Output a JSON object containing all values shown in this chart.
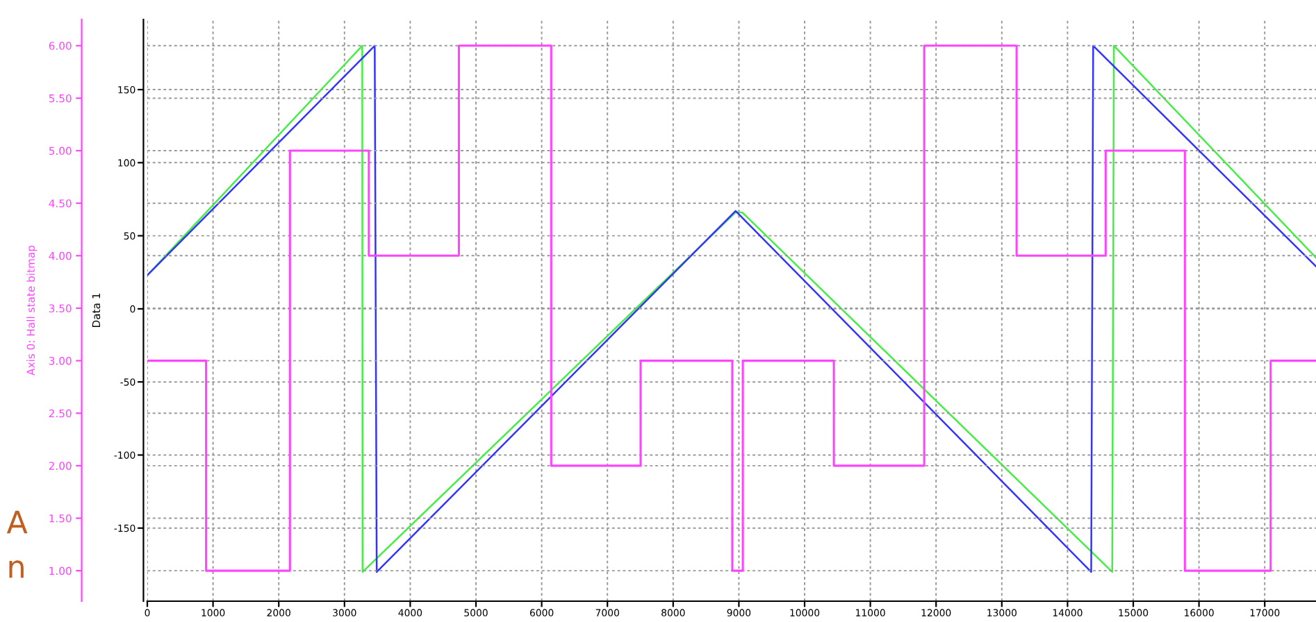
{
  "chart_data": {
    "type": "line",
    "ylabel": "Data 1",
    "y2label": "Axis 0: Hall state bitmap",
    "xlim": [
      0,
      17780
    ],
    "xticks": [
      0,
      1000,
      2000,
      3000,
      4000,
      5000,
      6000,
      7000,
      8000,
      9000,
      10000,
      11000,
      12000,
      13000,
      14000,
      15000,
      16000,
      17000
    ],
    "ylim": [
      -200,
      198
    ],
    "yticks": [
      -150,
      -100,
      -50,
      0,
      50,
      100,
      150
    ],
    "y2lim": [
      0.71,
      6.25
    ],
    "y2ticks": [
      {
        "value": 1,
        "label": "1.00"
      },
      {
        "value": 1.5,
        "label": "1.50"
      },
      {
        "value": 2,
        "label": "2.00"
      },
      {
        "value": 2.5,
        "label": "2.50"
      },
      {
        "value": 3,
        "label": "3.00"
      },
      {
        "value": 3.5,
        "label": "3.50"
      },
      {
        "value": 4,
        "label": "4.00"
      },
      {
        "value": 4.5,
        "label": "4.50"
      },
      {
        "value": 5,
        "label": "5.00"
      },
      {
        "value": 5.5,
        "label": "5.50"
      },
      {
        "value": 6,
        "label": "6.00"
      }
    ],
    "grid": true,
    "series": [
      {
        "type": "step",
        "axis": "y2",
        "color": "#ff44ff",
        "x": [
          0,
          895,
          2170,
          3370,
          4740,
          6145,
          7505,
          8900,
          9060,
          10445,
          11820,
          13225,
          14580,
          15785,
          17090,
          17780
        ],
        "values": [
          3,
          1,
          5,
          4,
          6,
          2,
          3,
          1,
          3,
          2,
          6,
          4,
          5,
          1,
          3,
          3
        ]
      },
      {
        "color": "#44ee44",
        "x": [
          0,
          3270,
          3275,
          8950,
          9050,
          14680,
          14705,
          17780
        ],
        "values": [
          23,
          180,
          -180,
          66,
          66,
          -180,
          180,
          35
        ]
      },
      {
        "color": "#3333ff",
        "x": [
          0,
          3460,
          3490,
          8950,
          14360,
          14390,
          17780
        ],
        "values": [
          23,
          180,
          -180,
          67,
          -180,
          180,
          29
        ]
      }
    ],
    "annotations": [
      "A",
      "n"
    ]
  }
}
